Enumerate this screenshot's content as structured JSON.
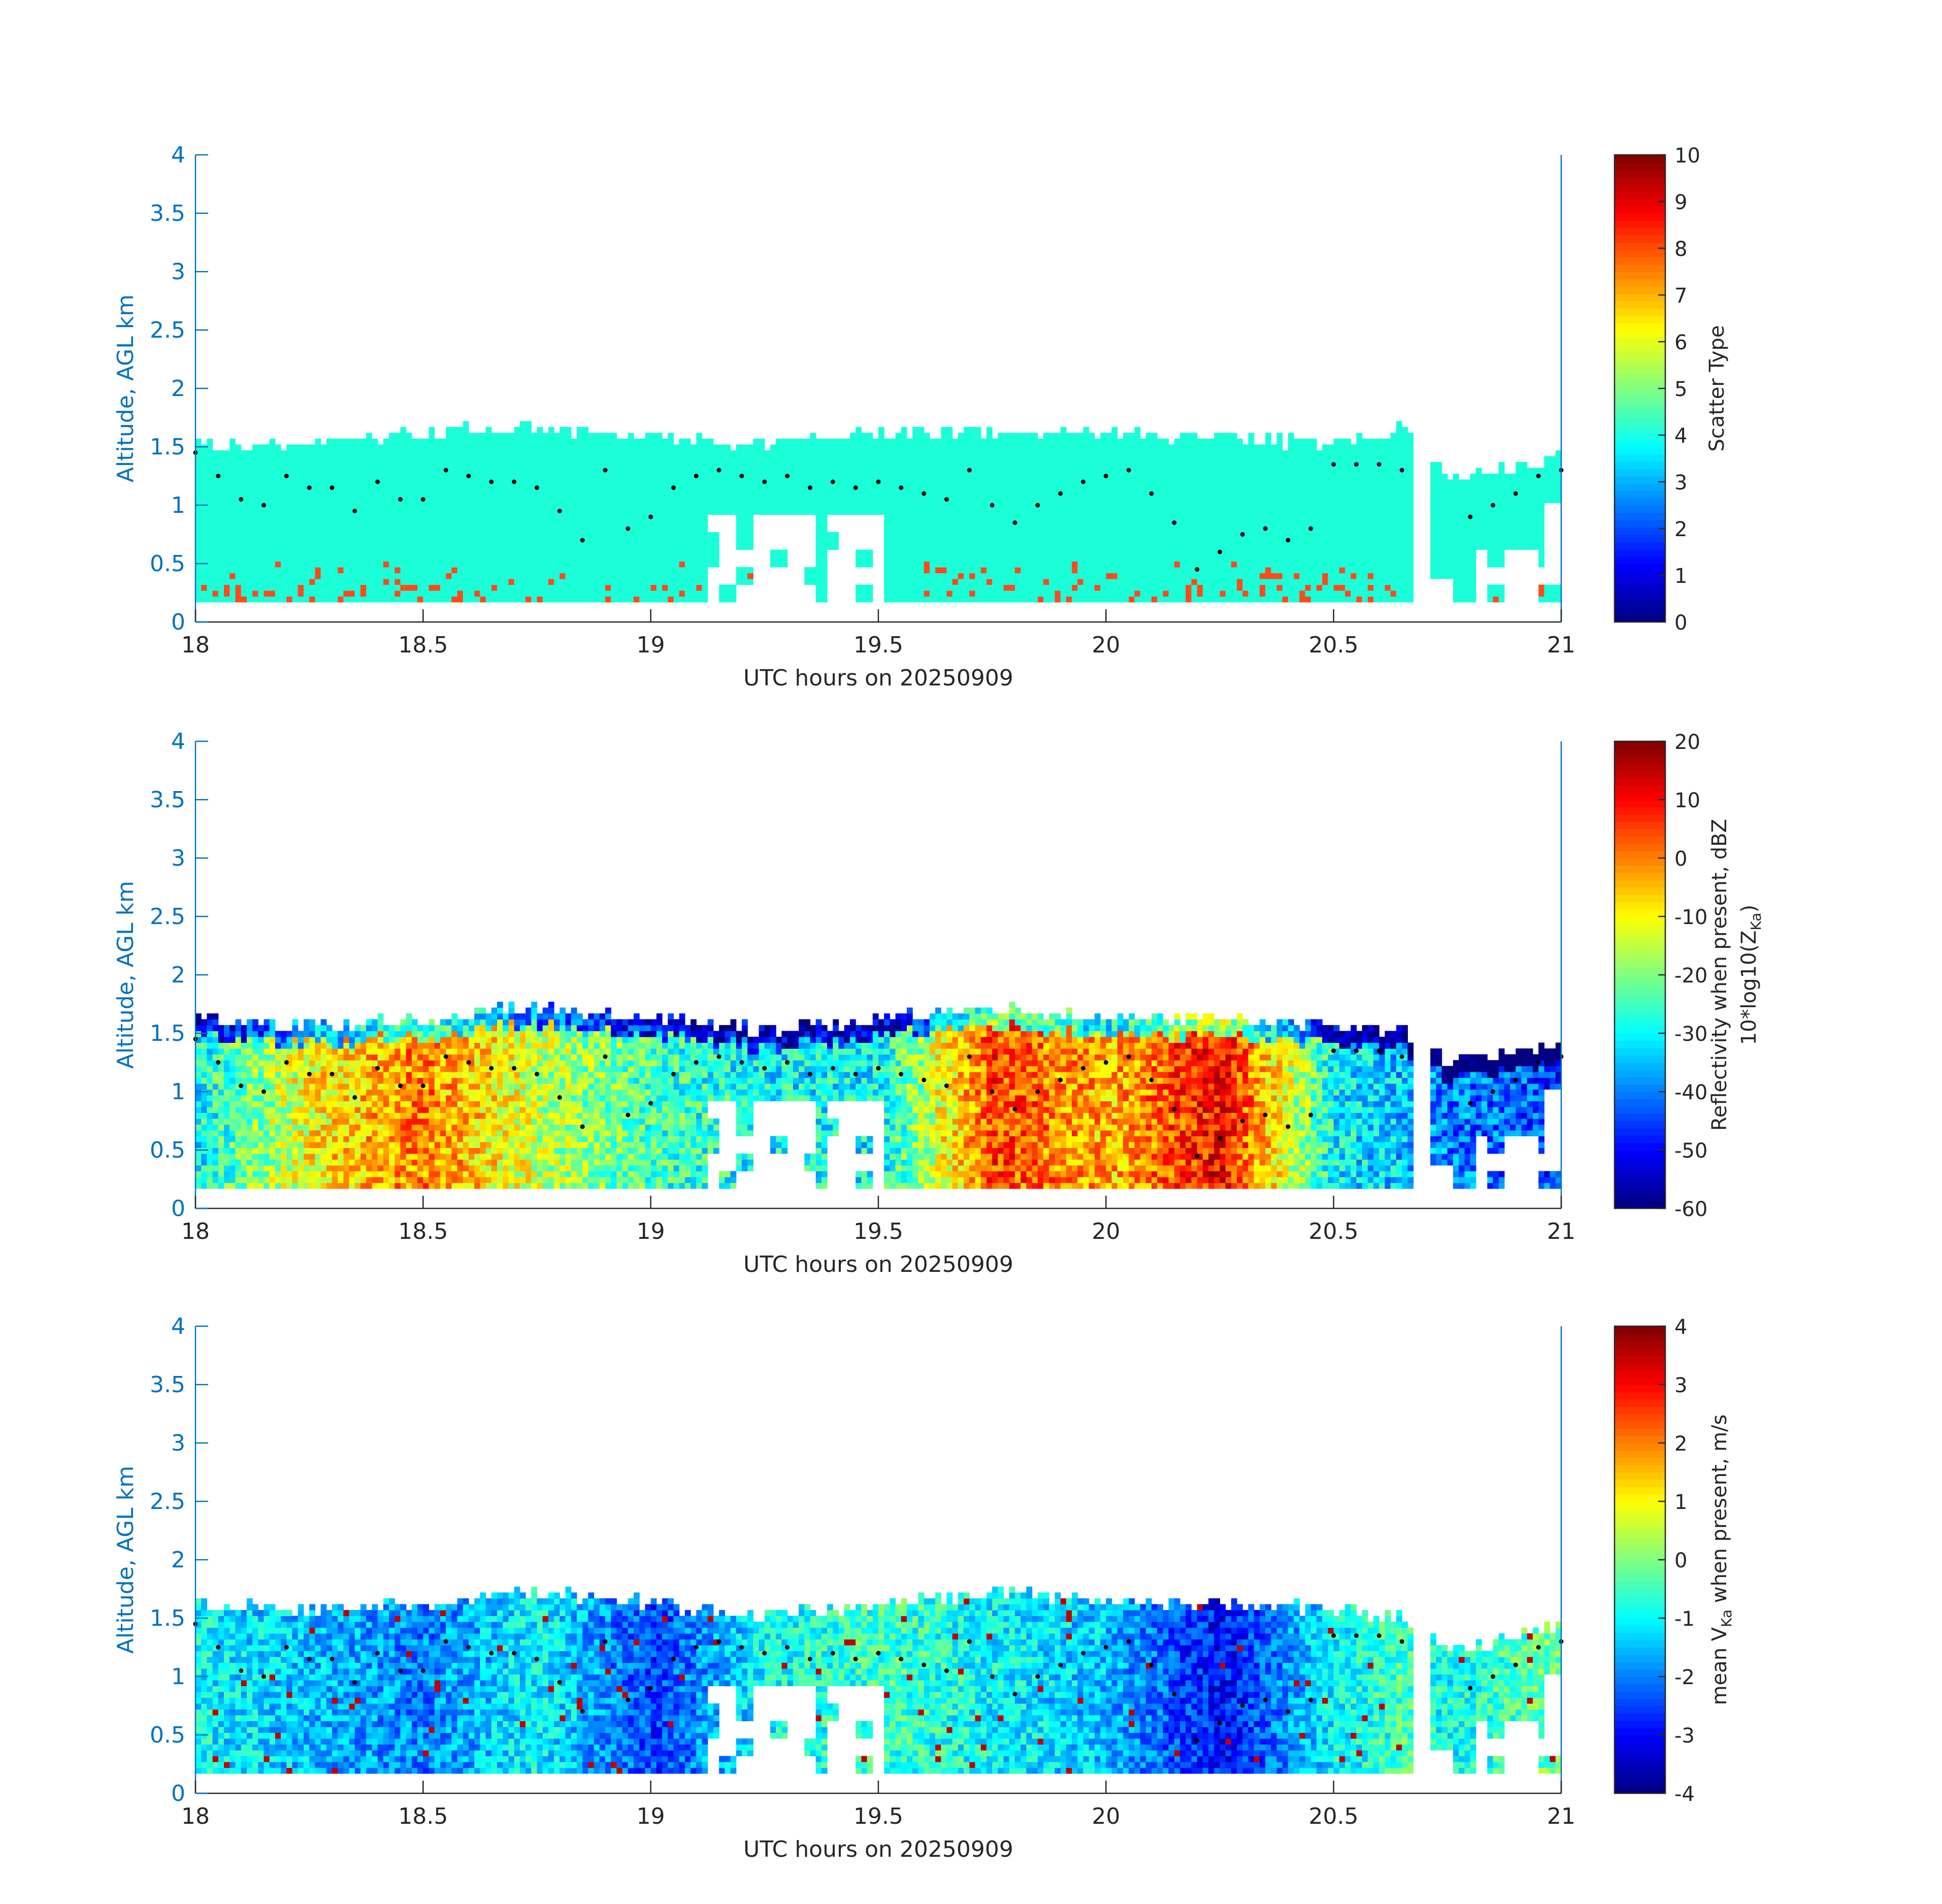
{
  "colors": {
    "axis": "#0072BD",
    "text": "#262626",
    "scatter_water": "#1BFFD9",
    "scatter_ice": "#FF4A1A",
    "height_dot": "#000000"
  },
  "panels": [
    {
      "id": "scatter",
      "xlabel": "UTC hours on 20250909",
      "ylabel": "Altitude, AGL km",
      "xlim": [
        18,
        21
      ],
      "ylim": [
        0,
        4
      ],
      "xticks": [
        "18",
        "18.5",
        "19",
        "19.5",
        "20",
        "20.5",
        "21"
      ],
      "yticks": [
        "0",
        "0.5",
        "1",
        "1.5",
        "2",
        "2.5",
        "3",
        "3.5",
        "4"
      ],
      "colorbar": {
        "label_lines": [
          "Scatter Type"
        ],
        "range": [
          0,
          10
        ],
        "ticks": [
          "0",
          "1",
          "2",
          "3",
          "4",
          "5",
          "6",
          "7",
          "8",
          "9",
          "10"
        ],
        "colormap": "jet"
      }
    },
    {
      "id": "reflectivity",
      "xlabel": "UTC hours on 20250909",
      "ylabel": "Altitude, AGL km",
      "xlim": [
        18,
        21
      ],
      "ylim": [
        0,
        4
      ],
      "xticks": [
        "18",
        "18.5",
        "19",
        "19.5",
        "20",
        "20.5",
        "21"
      ],
      "yticks": [
        "0",
        "0.5",
        "1",
        "1.5",
        "2",
        "2.5",
        "3",
        "3.5",
        "4"
      ],
      "colorbar": {
        "label_lines": [
          "Reflectivity when present, dBZ",
          "10*log10(Z",
          "Ka",
          ")"
        ],
        "range": [
          -60,
          20
        ],
        "ticks": [
          "-60",
          "-50",
          "-40",
          "-30",
          "-20",
          "-10",
          "0",
          "10",
          "20"
        ],
        "colormap": "jet"
      }
    },
    {
      "id": "velocity",
      "xlabel": "UTC hours on 20250909",
      "ylabel": "Altitude, AGL km",
      "xlim": [
        18,
        21
      ],
      "ylim": [
        0,
        4
      ],
      "xticks": [
        "18",
        "18.5",
        "19",
        "19.5",
        "20",
        "20.5",
        "21"
      ],
      "yticks": [
        "0",
        "0.5",
        "1",
        "1.5",
        "2",
        "2.5",
        "3",
        "3.5",
        "4"
      ],
      "colorbar": {
        "label_lines": [
          "mean V",
          "Ka",
          " when present, m/s"
        ],
        "range": [
          -4,
          4
        ],
        "ticks": [
          "-4",
          "-3",
          "-2",
          "-1",
          "0",
          "1",
          "2",
          "3",
          "4"
        ],
        "colormap": "jet"
      }
    }
  ],
  "chart_data": [
    {
      "type": "heatmap",
      "quantity": "Scatter Type",
      "x_hours": [
        18.0,
        18.25,
        18.5,
        18.75,
        19.0,
        19.25,
        19.5,
        19.75,
        20.0,
        20.25,
        20.5,
        20.65,
        20.75,
        21.0
      ],
      "echo_top_km": [
        1.5,
        1.5,
        1.6,
        1.65,
        1.55,
        1.5,
        1.6,
        1.6,
        1.6,
        1.55,
        1.5,
        1.65,
        1.2,
        1.4
      ],
      "echo_base_km": 0.17,
      "dominant_value": 4,
      "secondary_value": 8
    },
    {
      "type": "heatmap",
      "quantity": "Reflectivity dBZ",
      "x_hours": [
        18.0,
        18.25,
        18.5,
        18.75,
        19.0,
        19.25,
        19.5,
        19.75,
        20.0,
        20.25,
        20.5,
        20.65,
        20.75,
        21.0
      ],
      "echo_top_km": [
        1.6,
        1.55,
        1.6,
        1.7,
        1.6,
        1.5,
        1.6,
        1.7,
        1.6,
        1.6,
        1.55,
        1.5,
        1.2,
        1.4
      ],
      "typical_dBZ": [
        -30,
        -10,
        0,
        -15,
        -25,
        -30,
        -30,
        5,
        -5,
        10,
        -30,
        -35,
        -40,
        -45
      ]
    },
    {
      "type": "heatmap",
      "quantity": "mean V_Ka m/s",
      "x_hours": [
        18.0,
        18.25,
        18.5,
        18.75,
        19.0,
        19.25,
        19.5,
        19.75,
        20.0,
        20.25,
        20.5,
        20.65,
        20.75,
        21.0
      ],
      "echo_top_km": [
        1.6,
        1.55,
        1.6,
        1.7,
        1.6,
        1.5,
        1.6,
        1.7,
        1.6,
        1.6,
        1.55,
        1.5,
        1.2,
        1.4
      ],
      "typical_ms": [
        -1.0,
        -1.5,
        -2.0,
        -1.0,
        -2.5,
        -1.0,
        -0.5,
        -1.0,
        -1.5,
        -3.0,
        -1.0,
        -0.5,
        -1.0,
        0.0
      ]
    },
    {
      "type": "scatter",
      "quantity": "cloud height overlay (black dots, all panels)",
      "x": [
        18.0,
        18.05,
        18.1,
        18.15,
        18.2,
        18.25,
        18.3,
        18.35,
        18.4,
        18.45,
        18.5,
        18.55,
        18.6,
        18.65,
        18.7,
        18.75,
        18.8,
        18.85,
        18.9,
        18.95,
        19.0,
        19.05,
        19.1,
        19.15,
        19.2,
        19.25,
        19.3,
        19.35,
        19.4,
        19.45,
        19.5,
        19.55,
        19.6,
        19.65,
        19.7,
        19.75,
        19.8,
        19.85,
        19.9,
        19.95,
        20.0,
        20.05,
        20.1,
        20.15,
        20.2,
        20.25,
        20.3,
        20.35,
        20.4,
        20.45,
        20.5,
        20.55,
        20.6,
        20.65,
        20.8,
        20.85,
        20.9,
        20.95,
        21.0
      ],
      "y": [
        1.45,
        1.25,
        1.05,
        1.0,
        1.25,
        1.15,
        1.15,
        0.95,
        1.2,
        1.05,
        1.05,
        1.3,
        1.25,
        1.2,
        1.2,
        1.15,
        0.95,
        0.7,
        1.3,
        0.8,
        0.9,
        1.15,
        1.25,
        1.3,
        1.25,
        1.2,
        1.25,
        1.15,
        1.2,
        1.15,
        1.2,
        1.15,
        1.1,
        1.05,
        1.3,
        1.0,
        0.85,
        1.0,
        1.1,
        1.2,
        1.25,
        1.3,
        1.1,
        0.85,
        0.45,
        0.6,
        0.75,
        0.8,
        0.7,
        0.8,
        1.35,
        1.35,
        1.35,
        1.3,
        0.9,
        1.0,
        1.1,
        1.25,
        1.3
      ]
    }
  ]
}
